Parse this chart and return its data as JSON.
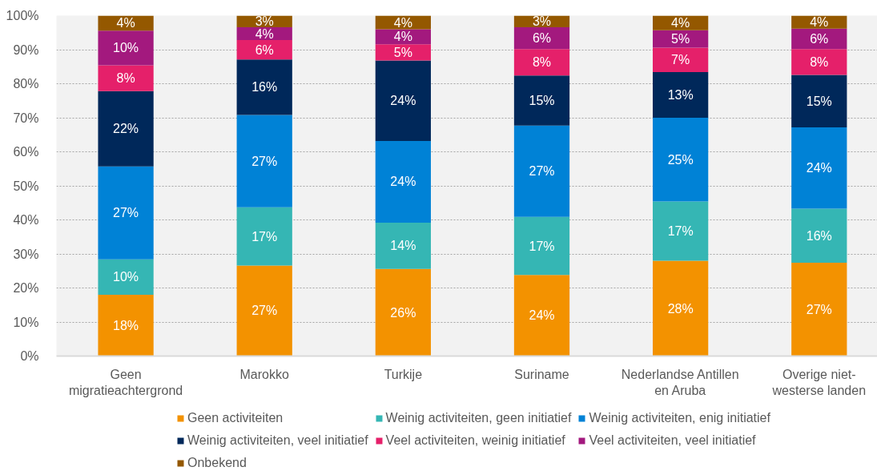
{
  "chart_data": {
    "type": "bar",
    "stacked": true,
    "categories": [
      "Geen migratieachtergrond",
      "Marokko",
      "Turkije",
      "Suriname",
      "Nederlandse Antillen en Aruba",
      "Overige niet-westerse landen"
    ],
    "series": [
      {
        "name": "Geen activiteiten",
        "color": "#f39200",
        "values": [
          18.0,
          26.6,
          25.6,
          23.8,
          28.0,
          27.4
        ],
        "value_labels": [
          "18%",
          "27%",
          "26%",
          "24%",
          "28%",
          "27%"
        ]
      },
      {
        "name": "Weinig activiteiten, geen initiatief",
        "color": "#35b6b4",
        "values": [
          10.4,
          17.1,
          13.6,
          17.1,
          17.4,
          15.9
        ],
        "value_labels": [
          "10%",
          "17%",
          "14%",
          "17%",
          "17%",
          "16%"
        ]
      },
      {
        "name": "Weinig activiteiten, enig initiatief",
        "color": "#0082d6",
        "values": [
          27.3,
          27.1,
          24.0,
          26.8,
          24.6,
          23.9
        ],
        "value_labels": [
          "27%",
          "27%",
          "24%",
          "27%",
          "25%",
          "24%"
        ]
      },
      {
        "name": "Weinig activiteiten, veel initiatief",
        "color": "#00285a",
        "values": [
          22.1,
          16.3,
          23.6,
          14.7,
          13.4,
          15.4
        ],
        "value_labels": [
          "22%",
          "16%",
          "24%",
          "15%",
          "13%",
          "15%"
        ]
      },
      {
        "name": "Veel activiteiten, weinig initiatief",
        "color": "#e5206a",
        "values": [
          7.6,
          5.7,
          4.8,
          7.8,
          7.2,
          7.6
        ],
        "value_labels": [
          "8%",
          "6%",
          "5%",
          "8%",
          "7%",
          "8%"
        ]
      },
      {
        "name": "Veel activiteiten, veel initiatief",
        "color": "#a3197e",
        "values": [
          10.2,
          3.8,
          4.4,
          6.4,
          5.1,
          6.0
        ],
        "value_labels": [
          "10%",
          "4%",
          "4%",
          "6%",
          "5%",
          "6%"
        ]
      },
      {
        "name": "Onbekend",
        "color": "#945800",
        "values": [
          4.4,
          3.4,
          4.0,
          3.4,
          4.3,
          3.8
        ],
        "value_labels": [
          "4%",
          "3%",
          "4%",
          "3%",
          "4%",
          "4%"
        ]
      }
    ],
    "ylim": [
      0,
      100
    ],
    "yticks": [
      {
        "value": 0,
        "label": "0%"
      },
      {
        "value": 10,
        "label": "10%"
      },
      {
        "value": 20,
        "label": "20%"
      },
      {
        "value": 30,
        "label": "30%"
      },
      {
        "value": 40,
        "label": "40%"
      },
      {
        "value": 50,
        "label": "50%"
      },
      {
        "value": 60,
        "label": "60%"
      },
      {
        "value": 70,
        "label": "70%"
      },
      {
        "value": 80,
        "label": "80%"
      },
      {
        "value": 90,
        "label": "90%"
      },
      {
        "value": 100,
        "label": "100%"
      }
    ],
    "grid": "y",
    "legend": "bottom"
  }
}
